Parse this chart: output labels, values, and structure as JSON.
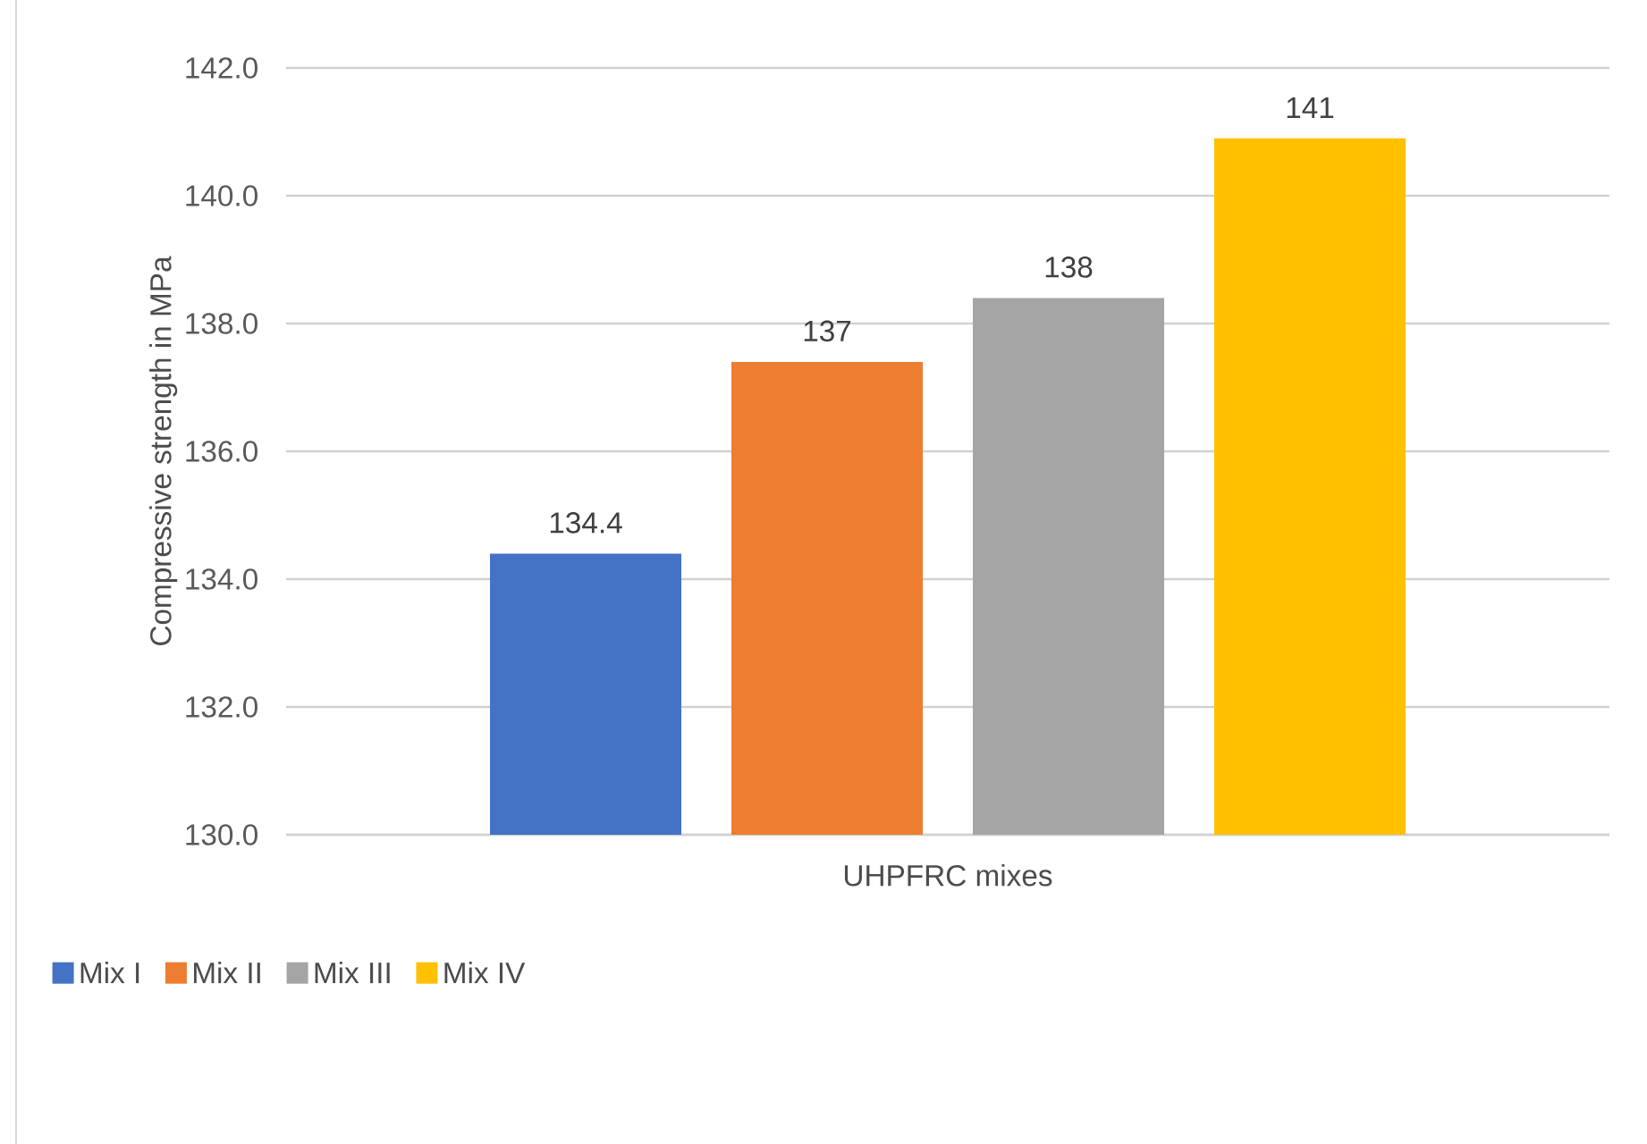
{
  "chart_data": {
    "type": "bar",
    "xlabel": "UHPFRC mixes",
    "ylabel": "Compressive strength in MPa",
    "categories": [
      null
    ],
    "series": [
      {
        "name": "Mix I",
        "color": "#4472c4",
        "values": [
          134.4
        ],
        "value_labels": [
          "134.4"
        ]
      },
      {
        "name": "Mix II",
        "color": "#ed7d31",
        "values": [
          137.4
        ],
        "value_labels": [
          "137"
        ]
      },
      {
        "name": "Mix III",
        "color": "#a5a5a5",
        "values": [
          138.4
        ],
        "value_labels": [
          "138"
        ]
      },
      {
        "name": "Mix IV",
        "color": "#ffc000",
        "values": [
          140.9
        ],
        "value_labels": [
          "141"
        ]
      }
    ],
    "ylim": [
      130,
      142
    ],
    "yticks": [
      {
        "value": 130,
        "label": "130.0"
      },
      {
        "value": 132,
        "label": "132.0"
      },
      {
        "value": 134,
        "label": "134.0"
      },
      {
        "value": 136,
        "label": "136.0"
      },
      {
        "value": 138,
        "label": "138.0"
      },
      {
        "value": 140,
        "label": "140.0"
      },
      {
        "value": 142,
        "label": "142.0"
      }
    ],
    "grid": "y",
    "legend": "bottom left"
  }
}
